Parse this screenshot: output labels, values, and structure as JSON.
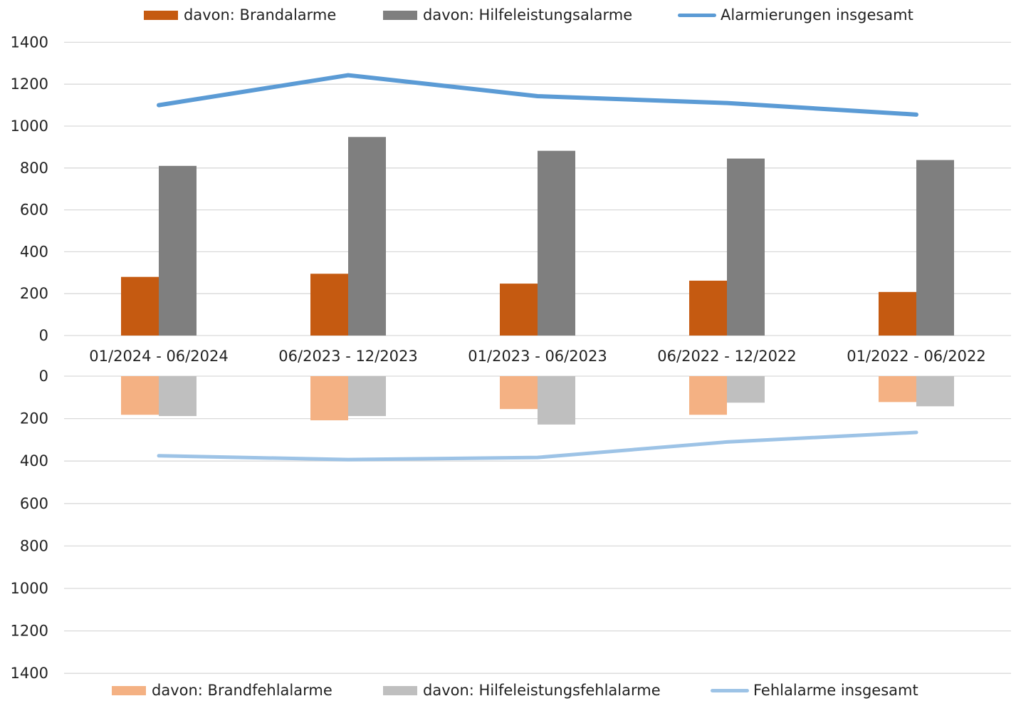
{
  "chart_data": [
    {
      "type": "bar",
      "categories": [
        "01/2024 - 06/2024",
        "06/2023 - 12/2023",
        "01/2023 - 06/2023",
        "06/2022 - 12/2022",
        "01/2022 - 06/2022"
      ],
      "ylim": [
        0,
        1400
      ],
      "yticks": [
        "0",
        "200",
        "400",
        "600",
        "800",
        "1000",
        "1200",
        "1400"
      ],
      "grid": true,
      "legend": "top",
      "series": [
        {
          "name": "davon: Brandalarme",
          "kind": "bar",
          "color": "#C55A11",
          "values": [
            280,
            295,
            248,
            262,
            208
          ]
        },
        {
          "name": "davon: Hilfeleistungsalarme",
          "kind": "bar",
          "color": "#7F7F7F",
          "values": [
            810,
            948,
            882,
            845,
            838
          ]
        },
        {
          "name": "Alarmierungen insgesamt",
          "kind": "line",
          "color": "#5B9BD5",
          "values": [
            1100,
            1243,
            1143,
            1110,
            1055
          ]
        }
      ]
    },
    {
      "type": "bar",
      "categories": [
        "01/2024 - 06/2024",
        "06/2023 - 12/2023",
        "01/2023 - 06/2023",
        "06/2022 - 12/2022",
        "01/2022 - 06/2022"
      ],
      "ylim": [
        0,
        1400
      ],
      "inverted": true,
      "yticks": [
        "0",
        "200",
        "400",
        "600",
        "800",
        "1000",
        "1200",
        "1400"
      ],
      "grid": true,
      "legend": "bottom",
      "series": [
        {
          "name": "davon: Brandfehlalarme",
          "kind": "bar",
          "color": "#F4B183",
          "values": [
            182,
            208,
            155,
            182,
            122
          ]
        },
        {
          "name": "davon: Hilfeleistungsfehlalarme",
          "kind": "bar",
          "color": "#BFBFBF",
          "values": [
            188,
            188,
            228,
            125,
            142
          ]
        },
        {
          "name": "Fehlalarme insgesamt",
          "kind": "line",
          "color": "#9DC3E6",
          "values": [
            375,
            393,
            383,
            310,
            265
          ]
        }
      ]
    }
  ]
}
